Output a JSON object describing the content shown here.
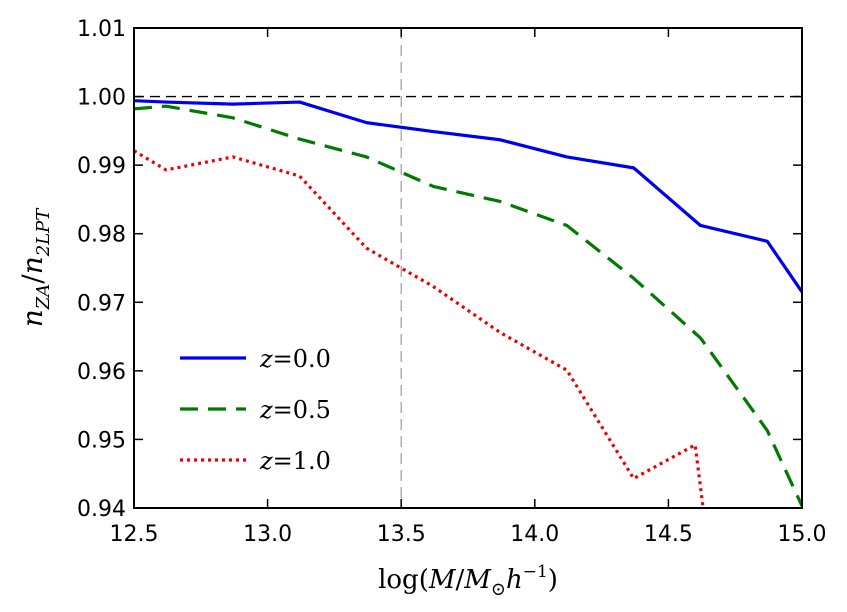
{
  "chart_data": {
    "type": "line",
    "title": "",
    "xlabel": "log(M/M_⊙ h^{-1})",
    "ylabel": "n_ZA/n_2LPT",
    "xlim": [
      12.5,
      15.0
    ],
    "ylim": [
      0.94,
      1.01
    ],
    "x_ticks": [
      12.5,
      13.0,
      13.5,
      14.0,
      14.5,
      15.0
    ],
    "x_tick_labels": [
      "12.5",
      "13.0",
      "13.5",
      "14.0",
      "14.5",
      "15.0"
    ],
    "y_ticks": [
      0.94,
      0.95,
      0.96,
      0.97,
      0.98,
      0.99,
      1.0,
      1.01
    ],
    "y_tick_labels": [
      "0.94",
      "0.95",
      "0.96",
      "0.97",
      "0.98",
      "0.99",
      "1.00",
      "1.01"
    ],
    "reference_lines": [
      {
        "orientation": "horizontal",
        "value": 1.0,
        "color": "#000000",
        "style": "dashed"
      },
      {
        "orientation": "vertical",
        "value": 13.5,
        "color": "#9a9a9a",
        "style": "dashed"
      }
    ],
    "legend_position": "lower-left",
    "series": [
      {
        "name": "z = 0.0",
        "z": "0.0",
        "color": "#0000ee",
        "style": "solid",
        "x": [
          12.5,
          12.62,
          12.87,
          13.12,
          13.37,
          13.62,
          13.87,
          14.12,
          14.37,
          14.62,
          14.87,
          15.0
        ],
        "y": [
          0.9994,
          0.9992,
          0.9989,
          0.9992,
          0.9962,
          0.9949,
          0.9937,
          0.9912,
          0.9896,
          0.9812,
          0.9789,
          0.9715
        ]
      },
      {
        "name": "z = 0.5",
        "z": "0.5",
        "color": "#007a00",
        "style": "dashed",
        "x": [
          12.5,
          12.62,
          12.87,
          13.12,
          13.37,
          13.62,
          13.87,
          14.12,
          14.37,
          14.62,
          14.87,
          15.0
        ],
        "y": [
          0.9982,
          0.9986,
          0.9969,
          0.9938,
          0.9912,
          0.9869,
          0.9847,
          0.9812,
          0.9735,
          0.9648,
          0.9513,
          0.9403
        ]
      },
      {
        "name": "z = 1.0",
        "z": "1.0",
        "color": "#ee0000",
        "style": "dotted",
        "x": [
          12.5,
          12.62,
          12.87,
          13.12,
          13.37,
          13.62,
          13.87,
          14.12,
          14.37,
          14.6,
          14.63
        ],
        "y": [
          0.9921,
          0.9893,
          0.9912,
          0.9884,
          0.9779,
          0.9723,
          0.9656,
          0.9601,
          0.9443,
          0.9492,
          0.94
        ]
      }
    ]
  }
}
